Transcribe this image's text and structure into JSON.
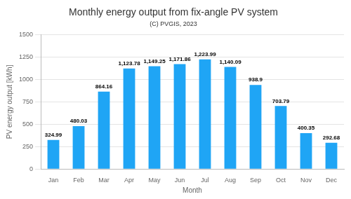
{
  "chart_data": {
    "type": "bar",
    "title": "Monthly energy output from fix-angle PV system",
    "subtitle": "(C) PVGIS, 2023",
    "x_label": "Month",
    "y_label": "PV energy output [kWh]",
    "categories": [
      "Jan",
      "Feb",
      "Mar",
      "Apr",
      "May",
      "Jun",
      "Jul",
      "Aug",
      "Sep",
      "Oct",
      "Nov",
      "Dec"
    ],
    "values": [
      324.99,
      480.03,
      864.16,
      1123.78,
      1149.25,
      1171.86,
      1223.99,
      1140.09,
      938.9,
      703.79,
      400.35,
      292.68
    ],
    "value_labels": [
      "324.99",
      "480.03",
      "864.16",
      "1,123.78",
      "1,149.25",
      "1,171.86",
      "1,223.99",
      "1,140.09",
      "938.9",
      "703.79",
      "400.35",
      "292.68"
    ],
    "color": "#1fa5f5",
    "ylim": [
      0,
      1500
    ],
    "yticks": [
      0,
      250,
      500,
      750,
      1000,
      1250,
      1500
    ],
    "grid": true,
    "data_labels": true
  }
}
